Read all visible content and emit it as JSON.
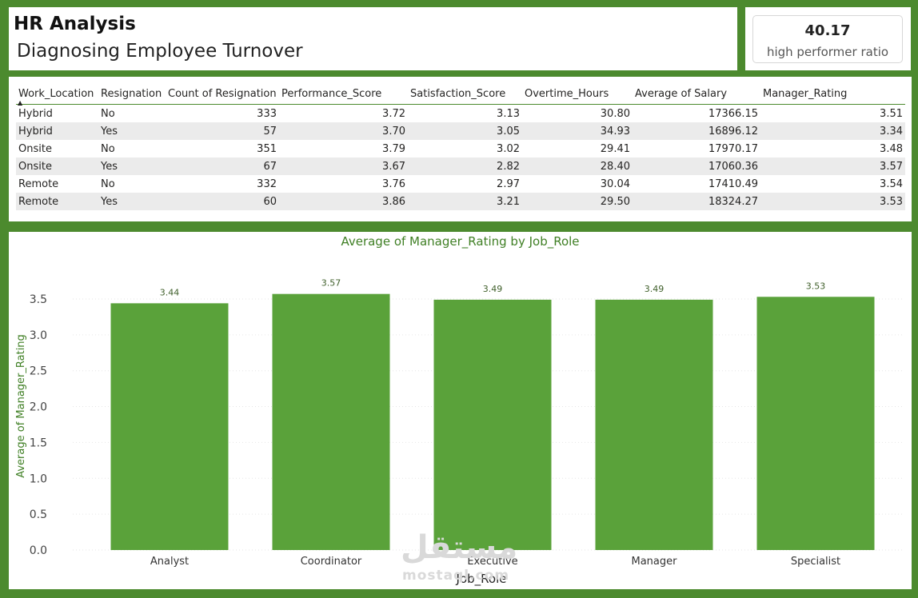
{
  "header": {
    "title": "HR Analysis",
    "subtitle": "Diagnosing Employee Turnover"
  },
  "kpi": {
    "value": "40.17",
    "label": "high performer ratio"
  },
  "table": {
    "columns": [
      "Work_Location",
      "Resignation",
      "Count of Resignation",
      "Performance_Score",
      "Satisfaction_Score",
      "Overtime_Hours",
      "Average of Salary",
      "Manager_Rating"
    ],
    "rows": [
      [
        "Hybrid",
        "No",
        "333",
        "3.72",
        "3.13",
        "30.80",
        "17366.15",
        "3.51"
      ],
      [
        "Hybrid",
        "Yes",
        "57",
        "3.70",
        "3.05",
        "34.93",
        "16896.12",
        "3.34"
      ],
      [
        "Onsite",
        "No",
        "351",
        "3.79",
        "3.02",
        "29.41",
        "17970.17",
        "3.48"
      ],
      [
        "Onsite",
        "Yes",
        "67",
        "3.67",
        "2.82",
        "28.40",
        "17060.36",
        "3.57"
      ],
      [
        "Remote",
        "No",
        "332",
        "3.76",
        "2.97",
        "30.04",
        "17410.49",
        "3.54"
      ],
      [
        "Remote",
        "Yes",
        "60",
        "3.86",
        "3.21",
        "29.50",
        "18324.27",
        "3.53"
      ]
    ]
  },
  "chart_data": {
    "type": "bar",
    "title": "Average of Manager_Rating by Job_Role",
    "xlabel": "Job_Role",
    "ylabel": "Average of Manager_Rating",
    "categories": [
      "Analyst",
      "Coordinator",
      "Executive",
      "Manager",
      "Specialist"
    ],
    "values": [
      3.44,
      3.57,
      3.49,
      3.49,
      3.53
    ],
    "value_labels": [
      "3.44",
      "3.57",
      "3.49",
      "3.49",
      "3.53"
    ],
    "yticks": [
      "0.0",
      "0.5",
      "1.0",
      "1.5",
      "2.0",
      "2.5",
      "3.0",
      "3.5"
    ],
    "ylim": [
      0,
      3.7
    ],
    "bar_color": "#5aa23a",
    "title_color": "#3f7f24"
  },
  "watermark": {
    "arabic": "مستقل",
    "latin": "mostaql.com"
  }
}
